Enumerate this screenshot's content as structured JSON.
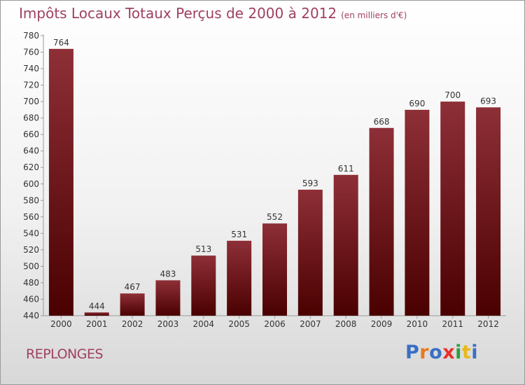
{
  "title": "Impôts Locaux Totaux Perçus de 2000 à 2012",
  "unit_note": "(en milliers d'€)",
  "commune": "REPLONGES",
  "logo": {
    "text": "Proxiti",
    "letter_colors": [
      "#3a6fc4",
      "#e87a1c",
      "#3a6fc4",
      "#e8302c",
      "#2e9e3c",
      "#e8b81c",
      "#3a6fc4"
    ]
  },
  "colors": {
    "bar_top": "#8e2f37",
    "bar_bottom": "#4a0000",
    "title": "#a04060"
  },
  "chart_data": {
    "type": "bar",
    "title": "Impôts Locaux Totaux Perçus de 2000 à 2012",
    "categories": [
      "2000",
      "2001",
      "2002",
      "2003",
      "2004",
      "2005",
      "2006",
      "2007",
      "2008",
      "2009",
      "2010",
      "2011",
      "2012"
    ],
    "values": [
      764,
      444,
      467,
      483,
      513,
      531,
      552,
      593,
      611,
      668,
      690,
      700,
      693
    ],
    "ylim": [
      440,
      780
    ],
    "yticks": [
      440,
      460,
      480,
      500,
      520,
      540,
      560,
      580,
      600,
      620,
      640,
      660,
      680,
      700,
      720,
      740,
      760,
      780
    ],
    "grid": false,
    "data_labels": true
  }
}
